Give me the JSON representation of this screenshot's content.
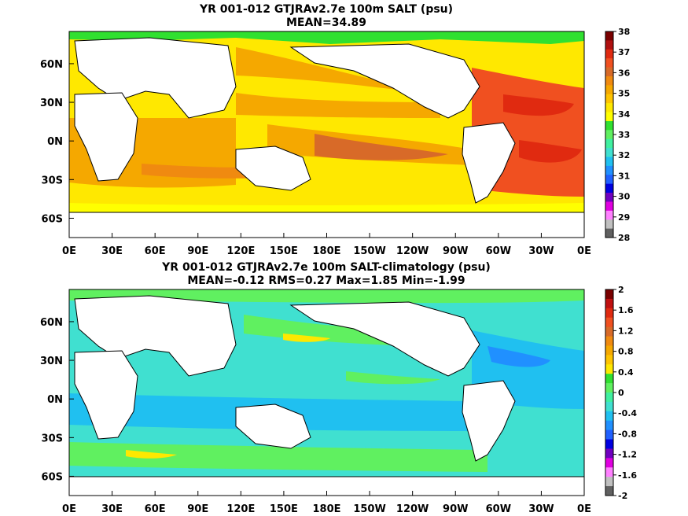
{
  "panels": [
    {
      "title_line1": "YR 001-012 GTJRAv2.7e 100m SALT (psu)",
      "title_line2": "MEAN=34.89",
      "variable": "salinity at 100m",
      "units": "psu",
      "colorbar": {
        "ticks": [
          "38",
          "37",
          "36",
          "35",
          "34",
          "33",
          "32",
          "31",
          "30",
          "29",
          "28"
        ],
        "colors": [
          "#7a0000",
          "#b01010",
          "#e02a10",
          "#f05020",
          "#d86a28",
          "#f08a10",
          "#f5a800",
          "#fec400",
          "#fee800",
          "#ffff00",
          "#30e030",
          "#60f060",
          "#40f0a0",
          "#40e0d0",
          "#20c0f0",
          "#2090ff",
          "#2060ff",
          "#0000e0",
          "#7000c0",
          "#e000e0",
          "#ff80ff",
          "#c0c0c0",
          "#606060"
        ]
      }
    },
    {
      "title_line1": "YR 001-012 GTJRAv2.7e 100m SALT-climatology (psu)",
      "title_line2": "MEAN=-0.12   RMS=0.27   Max=1.85   Min=-1.99",
      "variable": "salinity difference",
      "units": "psu",
      "colorbar": {
        "ticks": [
          "2",
          "1.6",
          "1.2",
          "0.8",
          "0.4",
          "0",
          "-0.4",
          "-0.8",
          "-1.2",
          "-1.6",
          "-2"
        ],
        "colors": [
          "#7a0000",
          "#c01010",
          "#e02a10",
          "#f05020",
          "#d86a28",
          "#f08a10",
          "#f5a800",
          "#fec400",
          "#fee800",
          "#30e030",
          "#60f060",
          "#40f0a0",
          "#40e0d0",
          "#20c0f0",
          "#2090ff",
          "#2060ff",
          "#0000e0",
          "#7000c0",
          "#e000e0",
          "#ff80ff",
          "#c0c0c0",
          "#606060"
        ]
      }
    }
  ],
  "axes": {
    "lon_ticks": [
      "0E",
      "30E",
      "60E",
      "90E",
      "120E",
      "150E",
      "180E",
      "150W",
      "120W",
      "90W",
      "60W",
      "30W",
      "0E"
    ],
    "lat_ticks": [
      "60N",
      "30N",
      "0N",
      "30S",
      "60S"
    ]
  }
}
